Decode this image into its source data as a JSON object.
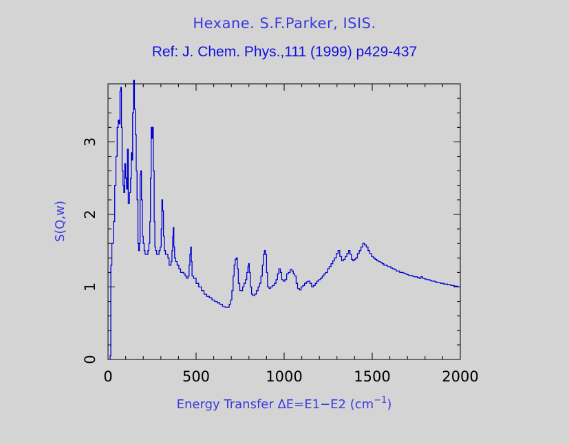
{
  "chart_data": {
    "type": "line",
    "title": "Hexane. S.F.Parker, ISIS.",
    "subtitle": "Ref: J. Chem. Phys.,111 (1999) p429-437",
    "xlabel": "Energy Transfer ΔE=E1−E2 (cm",
    "xlabel_exp": "−1",
    "xlabel_close": ")",
    "ylabel": "S(Q,w)",
    "xlim": [
      0,
      2000
    ],
    "ylim": [
      0,
      3.8
    ],
    "xticks": [
      0,
      500,
      1000,
      1500,
      2000
    ],
    "xtick_labels": [
      "0",
      "500",
      "1000",
      "1500",
      "2000"
    ],
    "yticks": [
      0,
      1,
      2,
      3
    ],
    "ytick_labels": [
      "0",
      "1",
      "2",
      "3"
    ],
    "grid": false,
    "series_color": "#0000d0",
    "series": [
      {
        "points": [
          [
            12,
            0.05
          ],
          [
            16,
            1.3
          ],
          [
            22,
            1.6
          ],
          [
            30,
            1.9
          ],
          [
            38,
            2.4
          ],
          [
            45,
            2.8
          ],
          [
            52,
            3.2
          ],
          [
            58,
            3.3
          ],
          [
            63,
            3.25
          ],
          [
            68,
            3.7
          ],
          [
            72,
            3.75
          ],
          [
            76,
            3.2
          ],
          [
            80,
            2.6
          ],
          [
            85,
            2.4
          ],
          [
            90,
            2.3
          ],
          [
            95,
            2.7
          ],
          [
            100,
            2.5
          ],
          [
            105,
            2.35
          ],
          [
            110,
            2.9
          ],
          [
            115,
            2.15
          ],
          [
            118,
            2.15
          ],
          [
            122,
            2.3
          ],
          [
            128,
            2.5
          ],
          [
            132,
            2.85
          ],
          [
            136,
            2.75
          ],
          [
            140,
            3.4
          ],
          [
            145,
            3.85
          ],
          [
            150,
            3.45
          ],
          [
            155,
            3.1
          ],
          [
            160,
            2.6
          ],
          [
            165,
            2.2
          ],
          [
            170,
            1.6
          ],
          [
            174,
            1.5
          ],
          [
            178,
            1.6
          ],
          [
            182,
            2.55
          ],
          [
            186,
            2.6
          ],
          [
            190,
            2.2
          ],
          [
            195,
            1.7
          ],
          [
            200,
            1.6
          ],
          [
            205,
            1.5
          ],
          [
            210,
            1.45
          ],
          [
            218,
            1.45
          ],
          [
            226,
            1.5
          ],
          [
            232,
            1.6
          ],
          [
            237,
            1.9
          ],
          [
            241,
            2.5
          ],
          [
            245,
            3.2
          ],
          [
            249,
            3.05
          ],
          [
            253,
            3.2
          ],
          [
            257,
            2.6
          ],
          [
            262,
            1.9
          ],
          [
            266,
            1.55
          ],
          [
            270,
            1.5
          ],
          [
            276,
            1.45
          ],
          [
            282,
            1.45
          ],
          [
            290,
            1.5
          ],
          [
            296,
            1.55
          ],
          [
            302,
            1.8
          ],
          [
            306,
            2.2
          ],
          [
            310,
            2.05
          ],
          [
            315,
            1.7
          ],
          [
            320,
            1.5
          ],
          [
            326,
            1.45
          ],
          [
            332,
            1.45
          ],
          [
            340,
            1.4
          ],
          [
            347,
            1.3
          ],
          [
            353,
            1.3
          ],
          [
            358,
            1.35
          ],
          [
            363,
            1.5
          ],
          [
            367,
            1.7
          ],
          [
            370,
            1.82
          ],
          [
            374,
            1.55
          ],
          [
            378,
            1.4
          ],
          [
            384,
            1.35
          ],
          [
            392,
            1.3
          ],
          [
            402,
            1.25
          ],
          [
            412,
            1.2
          ],
          [
            422,
            1.2
          ],
          [
            430,
            1.18
          ],
          [
            438,
            1.15
          ],
          [
            446,
            1.12
          ],
          [
            454,
            1.15
          ],
          [
            460,
            1.3
          ],
          [
            465,
            1.45
          ],
          [
            469,
            1.55
          ],
          [
            473,
            1.35
          ],
          [
            477,
            1.15
          ],
          [
            486,
            1.12
          ],
          [
            500,
            1.05
          ],
          [
            515,
            1.0
          ],
          [
            530,
            0.95
          ],
          [
            545,
            0.9
          ],
          [
            560,
            0.87
          ],
          [
            575,
            0.85
          ],
          [
            590,
            0.82
          ],
          [
            605,
            0.8
          ],
          [
            620,
            0.78
          ],
          [
            635,
            0.76
          ],
          [
            650,
            0.73
          ],
          [
            665,
            0.72
          ],
          [
            678,
            0.72
          ],
          [
            688,
            0.76
          ],
          [
            696,
            0.82
          ],
          [
            703,
            0.95
          ],
          [
            710,
            1.15
          ],
          [
            716,
            1.3
          ],
          [
            722,
            1.38
          ],
          [
            728,
            1.4
          ],
          [
            734,
            1.25
          ],
          [
            740,
            1.05
          ],
          [
            748,
            0.95
          ],
          [
            756,
            0.95
          ],
          [
            764,
            1.0
          ],
          [
            772,
            1.05
          ],
          [
            780,
            1.1
          ],
          [
            788,
            1.2
          ],
          [
            794,
            1.28
          ],
          [
            798,
            1.32
          ],
          [
            802,
            1.2
          ],
          [
            808,
            1.0
          ],
          [
            815,
            0.9
          ],
          [
            822,
            0.88
          ],
          [
            832,
            0.9
          ],
          [
            842,
            0.95
          ],
          [
            852,
            1.0
          ],
          [
            860,
            1.05
          ],
          [
            868,
            1.15
          ],
          [
            876,
            1.3
          ],
          [
            882,
            1.45
          ],
          [
            888,
            1.5
          ],
          [
            894,
            1.45
          ],
          [
            900,
            1.2
          ],
          [
            906,
            1.0
          ],
          [
            914,
            0.98
          ],
          [
            924,
            1.0
          ],
          [
            934,
            1.02
          ],
          [
            944,
            1.05
          ],
          [
            954,
            1.1
          ],
          [
            962,
            1.18
          ],
          [
            970,
            1.25
          ],
          [
            978,
            1.2
          ],
          [
            986,
            1.1
          ],
          [
            994,
            1.08
          ],
          [
            1004,
            1.1
          ],
          [
            1014,
            1.18
          ],
          [
            1024,
            1.2
          ],
          [
            1034,
            1.24
          ],
          [
            1044,
            1.22
          ],
          [
            1052,
            1.18
          ],
          [
            1060,
            1.15
          ],
          [
            1068,
            1.05
          ],
          [
            1076,
            0.98
          ],
          [
            1086,
            0.96
          ],
          [
            1096,
            1.0
          ],
          [
            1106,
            1.02
          ],
          [
            1116,
            1.05
          ],
          [
            1126,
            1.07
          ],
          [
            1136,
            1.08
          ],
          [
            1146,
            1.05
          ],
          [
            1156,
            1.0
          ],
          [
            1166,
            1.02
          ],
          [
            1176,
            1.05
          ],
          [
            1186,
            1.08
          ],
          [
            1196,
            1.1
          ],
          [
            1206,
            1.12
          ],
          [
            1216,
            1.15
          ],
          [
            1226,
            1.18
          ],
          [
            1236,
            1.2
          ],
          [
            1246,
            1.25
          ],
          [
            1256,
            1.28
          ],
          [
            1266,
            1.32
          ],
          [
            1276,
            1.36
          ],
          [
            1286,
            1.4
          ],
          [
            1296,
            1.46
          ],
          [
            1306,
            1.5
          ],
          [
            1316,
            1.42
          ],
          [
            1326,
            1.36
          ],
          [
            1336,
            1.38
          ],
          [
            1346,
            1.42
          ],
          [
            1356,
            1.46
          ],
          [
            1366,
            1.5
          ],
          [
            1374,
            1.45
          ],
          [
            1382,
            1.38
          ],
          [
            1390,
            1.36
          ],
          [
            1398,
            1.38
          ],
          [
            1406,
            1.4
          ],
          [
            1416,
            1.46
          ],
          [
            1426,
            1.5
          ],
          [
            1436,
            1.55
          ],
          [
            1446,
            1.6
          ],
          [
            1456,
            1.58
          ],
          [
            1466,
            1.55
          ],
          [
            1476,
            1.5
          ],
          [
            1486,
            1.46
          ],
          [
            1496,
            1.42
          ],
          [
            1506,
            1.4
          ],
          [
            1516,
            1.38
          ],
          [
            1526,
            1.36
          ],
          [
            1536,
            1.35
          ],
          [
            1546,
            1.34
          ],
          [
            1556,
            1.32
          ],
          [
            1566,
            1.3
          ],
          [
            1576,
            1.3
          ],
          [
            1586,
            1.28
          ],
          [
            1596,
            1.28
          ],
          [
            1606,
            1.26
          ],
          [
            1616,
            1.25
          ],
          [
            1626,
            1.24
          ],
          [
            1636,
            1.22
          ],
          [
            1646,
            1.22
          ],
          [
            1656,
            1.2
          ],
          [
            1666,
            1.2
          ],
          [
            1676,
            1.19
          ],
          [
            1686,
            1.18
          ],
          [
            1696,
            1.17
          ],
          [
            1706,
            1.16
          ],
          [
            1716,
            1.16
          ],
          [
            1726,
            1.15
          ],
          [
            1736,
            1.14
          ],
          [
            1746,
            1.14
          ],
          [
            1756,
            1.13
          ],
          [
            1766,
            1.12
          ],
          [
            1776,
            1.14
          ],
          [
            1786,
            1.12
          ],
          [
            1796,
            1.11
          ],
          [
            1806,
            1.1
          ],
          [
            1816,
            1.1
          ],
          [
            1826,
            1.09
          ],
          [
            1836,
            1.08
          ],
          [
            1846,
            1.08
          ],
          [
            1856,
            1.07
          ],
          [
            1866,
            1.06
          ],
          [
            1876,
            1.06
          ],
          [
            1886,
            1.05
          ],
          [
            1896,
            1.05
          ],
          [
            1906,
            1.04
          ],
          [
            1916,
            1.04
          ],
          [
            1926,
            1.03
          ],
          [
            1936,
            1.03
          ],
          [
            1946,
            1.02
          ],
          [
            1956,
            1.02
          ],
          [
            1966,
            1.01
          ],
          [
            1976,
            1.01
          ],
          [
            1986,
            1.0
          ],
          [
            2000,
            1.0
          ]
        ]
      }
    ]
  }
}
